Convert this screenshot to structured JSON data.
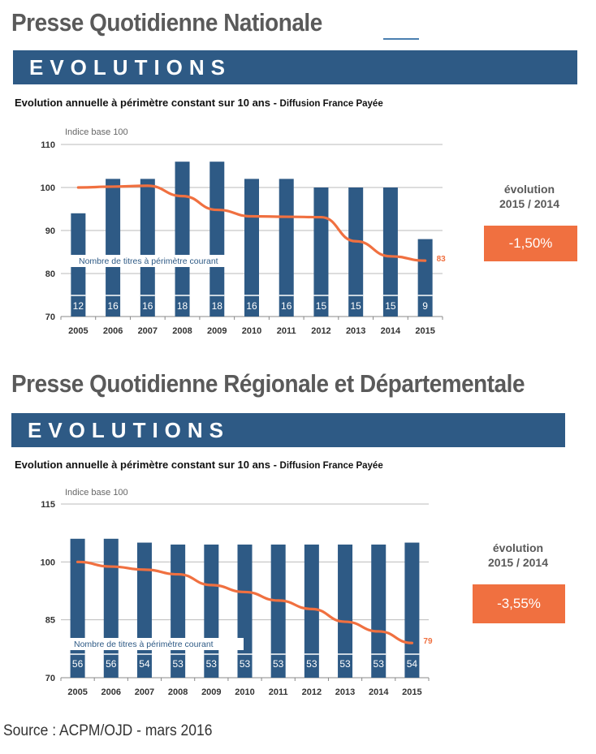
{
  "sections": [
    {
      "title": "Presse Quotidienne Nationale",
      "banner": "EVOLUTIONS",
      "subtitle_main": "Evolution annuelle à périmètre constant sur 10 ans -",
      "subtitle_small": "Diffusion France Payée",
      "evolution_label_line1": "évolution",
      "evolution_label_line2": "2015 / 2014",
      "evolution_value": "-1,50%"
    },
    {
      "title": "Presse Quotidienne Régionale et Départementale",
      "banner": "EVOLUTIONS",
      "subtitle_main": "Evolution annuelle à périmètre constant sur 10 ans -",
      "subtitle_small": "Diffusion France Payée",
      "evolution_label_line1": "évolution",
      "evolution_label_line2": "2015 / 2014",
      "evolution_value": "-3,55%"
    }
  ],
  "source": "Source : ACPM/OJD - mars 2016",
  "colors": {
    "bar": "#2e5a85",
    "line": "#f07040",
    "banner": "#2e5a85",
    "evo_box": "#f07040"
  },
  "chart_data": [
    {
      "type": "bar",
      "title": "",
      "ylabel": "Indice base 100",
      "categories": [
        "2005",
        "2006",
        "2007",
        "2008",
        "2009",
        "2010",
        "2011",
        "2012",
        "2013",
        "2014",
        "2015"
      ],
      "ylim": [
        70,
        110
      ],
      "yticks": [
        70,
        80,
        90,
        100,
        110
      ],
      "grid": true,
      "series": [
        {
          "kind": "bar",
          "values": [
            94,
            102,
            102,
            106,
            106,
            102,
            102,
            100,
            100,
            100,
            88
          ]
        },
        {
          "kind": "line",
          "values": [
            100,
            100.2,
            100.4,
            98,
            94.8,
            93.3,
            93.2,
            93.1,
            87.5,
            84,
            83
          ]
        }
      ],
      "bar_labels": [
        12,
        16,
        16,
        18,
        18,
        16,
        16,
        15,
        15,
        15,
        9
      ],
      "bar_labels_title": "Nombre de titres à périmètre courant",
      "end_label": "83"
    },
    {
      "type": "bar",
      "title": "",
      "ylabel": "Indice base 100",
      "categories": [
        "2005",
        "2006",
        "2007",
        "2008",
        "2009",
        "2010",
        "2011",
        "2012",
        "2013",
        "2014",
        "2015"
      ],
      "ylim": [
        70,
        115
      ],
      "yticks": [
        70,
        85,
        100,
        115
      ],
      "grid": true,
      "series": [
        {
          "kind": "bar",
          "values": [
            106,
            106,
            105,
            104.5,
            104.5,
            104.5,
            104.5,
            104.5,
            104.5,
            104.5,
            105
          ]
        },
        {
          "kind": "line",
          "values": [
            100,
            98.8,
            98,
            96.8,
            94,
            92.2,
            90,
            87.8,
            84.5,
            82,
            79
          ]
        }
      ],
      "bar_labels": [
        56,
        56,
        54,
        53,
        53,
        53,
        53,
        53,
        53,
        53,
        54
      ],
      "bar_labels_title": "Nombre de titres à périmètre courant",
      "end_label": "79"
    }
  ]
}
